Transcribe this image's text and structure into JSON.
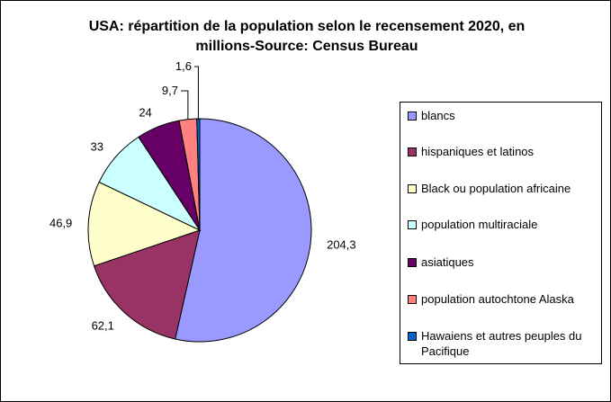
{
  "chart_data": {
    "type": "pie",
    "title": "USA: répartition de la population selon le recensement 2020, en millions-Source: Census Bureau",
    "title_lines": [
      "USA: répartition de la population selon le recensement 2020, en",
      "millions-Source: Census Bureau"
    ],
    "categories": [
      "blancs",
      "hispaniques et latinos",
      "Black ou population africaine",
      "population multiraciale",
      "asiatiques",
      "population autochtone Alaska",
      "Hawaiens et autres peuples du Pacifique"
    ],
    "values": [
      204.3,
      62.1,
      46.9,
      33,
      24,
      9.7,
      1.6
    ],
    "value_labels": [
      "204,3",
      "62,1",
      "46,9",
      "33",
      "24",
      "9,7",
      "1,6"
    ],
    "colors": [
      "#9999ff",
      "#993366",
      "#ffffcc",
      "#ccffff",
      "#660066",
      "#ff8080",
      "#0066cc"
    ],
    "legend_position": "right"
  }
}
